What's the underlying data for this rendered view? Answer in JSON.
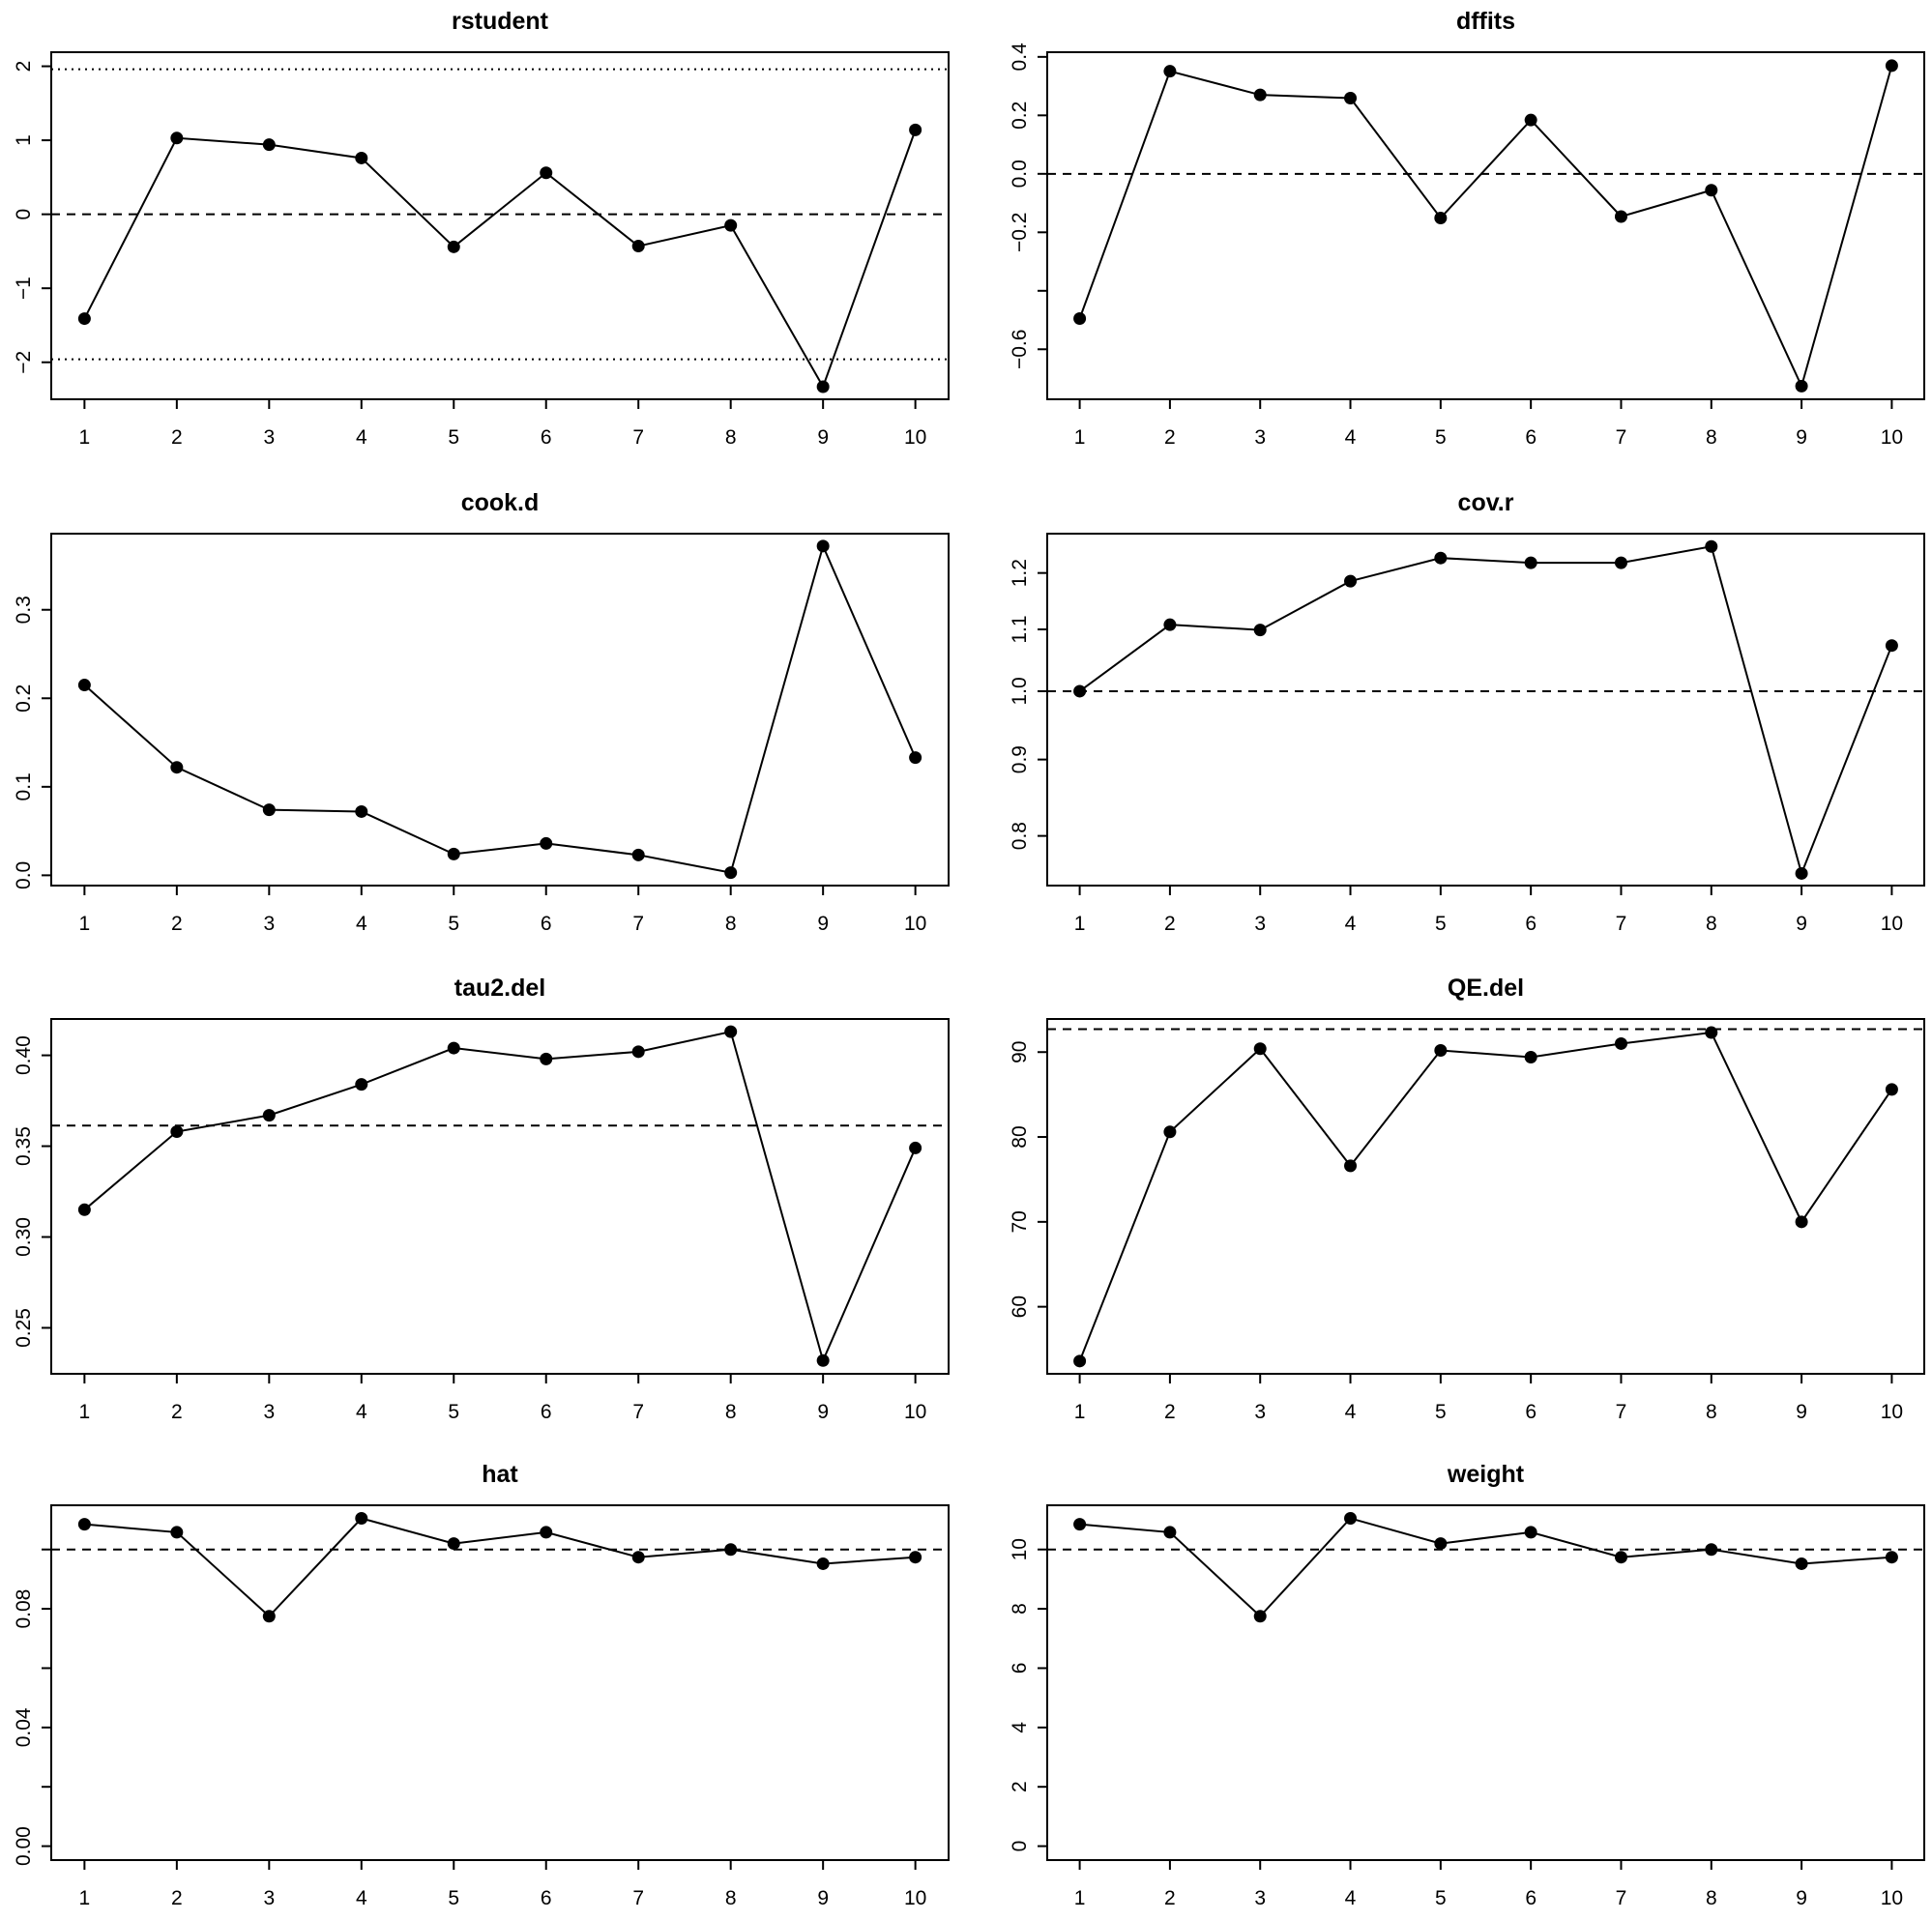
{
  "chart_data": [
    {
      "type": "line",
      "title": "rstudent",
      "x": [
        1,
        2,
        3,
        4,
        5,
        6,
        7,
        8,
        9,
        10
      ],
      "values": [
        -1.41,
        1.03,
        0.94,
        0.76,
        -0.44,
        0.56,
        -0.43,
        -0.15,
        -2.33,
        1.14
      ],
      "ylim": [
        -2.5,
        2.19
      ],
      "log": false,
      "yticks": [
        -2,
        -1,
        0,
        1,
        2
      ],
      "ytick_labels": [
        "−2",
        "−1",
        "0",
        "1",
        "2"
      ],
      "ref_lines": [
        {
          "value": 0,
          "style": "dashed"
        },
        {
          "value": 1.96,
          "style": "dotted"
        },
        {
          "value": -1.96,
          "style": "dotted"
        }
      ]
    },
    {
      "type": "line",
      "title": "dffits",
      "x": [
        1,
        2,
        3,
        4,
        5,
        6,
        7,
        8,
        9,
        10
      ],
      "values": [
        -0.495,
        0.351,
        0.27,
        0.259,
        -0.151,
        0.184,
        -0.146,
        -0.056,
        -0.726,
        0.37
      ],
      "ylim": [
        -0.771,
        0.416
      ],
      "log": false,
      "yticks": [
        -0.6,
        -0.4,
        -0.2,
        0,
        0.2,
        0.4
      ],
      "ytick_labels": [
        "−0.6",
        "",
        "−0.2",
        "0.0",
        "0.2",
        "0.4"
      ],
      "ref_lines": [
        {
          "value": 0,
          "style": "dashed"
        }
      ]
    },
    {
      "type": "line",
      "title": "cook.d",
      "x": [
        1,
        2,
        3,
        4,
        5,
        6,
        7,
        8,
        9,
        10
      ],
      "values": [
        0.215,
        0.122,
        0.074,
        0.072,
        0.024,
        0.036,
        0.023,
        0.003,
        0.372,
        0.133
      ],
      "ylim": [
        -0.0116,
        0.386
      ],
      "log": false,
      "yticks": [
        0,
        0.1,
        0.2,
        0.3
      ],
      "ytick_labels": [
        "0.0",
        "0.1",
        "0.2",
        "0.3"
      ],
      "ref_lines": []
    },
    {
      "type": "line",
      "title": "cov.r",
      "x": [
        1,
        2,
        3,
        4,
        5,
        6,
        7,
        8,
        9,
        10
      ],
      "values": [
        1.0,
        1.108,
        1.099,
        1.185,
        1.228,
        1.219,
        1.219,
        1.25,
        0.755,
        1.073
      ],
      "ylim": [
        0.741,
        1.275
      ],
      "log": true,
      "yticks": [
        0.8,
        0.9,
        1.0,
        1.1,
        1.2
      ],
      "ytick_labels": [
        "0.8",
        "0.9",
        "1.0",
        "1.1",
        "1.2"
      ],
      "ref_lines": [
        {
          "value": 1,
          "style": "dashed"
        }
      ]
    },
    {
      "type": "line",
      "title": "tau2.del",
      "x": [
        1,
        2,
        3,
        4,
        5,
        6,
        7,
        8,
        9,
        10
      ],
      "values": [
        0.315,
        0.358,
        0.367,
        0.384,
        0.404,
        0.398,
        0.402,
        0.413,
        0.232,
        0.349
      ],
      "ylim": [
        0.2247,
        0.42
      ],
      "log": false,
      "yticks": [
        0.25,
        0.3,
        0.35,
        0.4
      ],
      "ytick_labels": [
        "0.25",
        "0.30",
        "0.35",
        "0.40"
      ],
      "ref_lines": [
        {
          "value": 0.3613,
          "style": "dashed"
        }
      ]
    },
    {
      "type": "line",
      "title": "QE.del",
      "x": [
        1,
        2,
        3,
        4,
        5,
        6,
        7,
        8,
        9,
        10
      ],
      "values": [
        53.6,
        80.6,
        90.4,
        76.6,
        90.2,
        89.4,
        91.0,
        92.3,
        70.0,
        85.6
      ],
      "ylim": [
        52.1,
        93.9
      ],
      "log": false,
      "yticks": [
        60,
        70,
        80,
        90
      ],
      "ytick_labels": [
        "60",
        "70",
        "80",
        "90"
      ],
      "ref_lines": [
        {
          "value": 92.7,
          "style": "dashed"
        }
      ]
    },
    {
      "type": "line",
      "title": "hat",
      "x": [
        1,
        2,
        3,
        4,
        5,
        6,
        7,
        8,
        9,
        10
      ],
      "values": [
        0.1085,
        0.1058,
        0.0775,
        0.1105,
        0.102,
        0.1058,
        0.0974,
        0.1,
        0.0952,
        0.0974
      ],
      "ylim": [
        -0.0047,
        0.1149
      ],
      "log": false,
      "yticks": [
        0,
        0.02,
        0.04,
        0.06,
        0.08,
        0.1
      ],
      "ytick_labels": [
        "0.00",
        "",
        "0.04",
        "",
        "0.08",
        ""
      ],
      "ref_lines": [
        {
          "value": 0.1,
          "style": "dashed"
        }
      ]
    },
    {
      "type": "line",
      "title": "weight",
      "x": [
        1,
        2,
        3,
        4,
        5,
        6,
        7,
        8,
        9,
        10
      ],
      "values": [
        10.85,
        10.58,
        7.75,
        11.05,
        10.2,
        10.58,
        9.74,
        10.0,
        9.52,
        9.74
      ],
      "ylim": [
        -0.47,
        11.49
      ],
      "log": false,
      "yticks": [
        0,
        2,
        4,
        6,
        8,
        10
      ],
      "ytick_labels": [
        "0",
        "2",
        "4",
        "6",
        "8",
        "10"
      ],
      "ref_lines": [
        {
          "value": 10,
          "style": "dashed"
        }
      ]
    }
  ],
  "colors": {
    "ink": "#000000",
    "background": "#ffffff"
  }
}
